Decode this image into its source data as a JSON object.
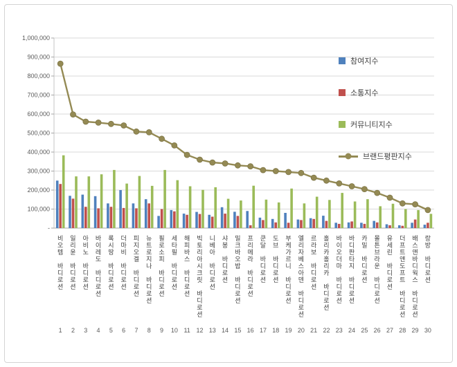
{
  "chart_data": {
    "type": "bar",
    "title": "",
    "categories": [
      "비오템 바디로션",
      "일리윤 바디로션",
      "아비노 바디로션",
      "바이레도 바디로션",
      "록시땅 바디로션",
      "더마비 바디로션",
      "피지오겔 바디로션",
      "뉴트로지나 바디로션",
      "필로소피 바디로션",
      "세타필 바디로션",
      "해피바스 바디로션",
      "빅토리아시크릿 바디로션",
      "니베아 바디로션",
      "샤봉 바디로션",
      "밀크바오밥 바디로션",
      "프리메라 바디로션",
      "쿤달 바디로션",
      "도브 바디로션",
      "부케가르니 바디로션",
      "엘리자베스아덴 바디로션",
      "르라보 바디로션",
      "홀리카홀리카 바디로션",
      "바이오더마 바디로션",
      "바디판타지 바디로션",
      "카밀 바디로션",
      "몰튼브라운 바디로션",
      "유세린 바디로션",
      "더프트앤도프트 바디로션",
      "배스앤바디웍스 바디로션",
      "랑방 바디로션"
    ],
    "ranks": [
      "1",
      "2",
      "3",
      "4",
      "5",
      "6",
      "7",
      "8",
      "9",
      "10",
      "11",
      "12",
      "13",
      "14",
      "15",
      "16",
      "17",
      "18",
      "19",
      "20",
      "21",
      "22",
      "23",
      "24",
      "25",
      "26",
      "27",
      "28",
      "29",
      "30"
    ],
    "series": [
      {
        "name": "참여지수",
        "kind": "bar",
        "color": "#4F81BD",
        "values": [
          250000,
          170000,
          176000,
          168000,
          130000,
          200000,
          130000,
          152000,
          64000,
          95000,
          76000,
          85000,
          70000,
          110000,
          86000,
          90000,
          55000,
          48000,
          80000,
          45000,
          52000,
          65000,
          28000,
          30000,
          28000,
          38000,
          20000,
          15000,
          28000,
          18000
        ]
      },
      {
        "name": "소통지수",
        "kind": "bar",
        "color": "#C0504D",
        "values": [
          232000,
          155000,
          112000,
          104000,
          112000,
          106000,
          104000,
          130000,
          100000,
          88000,
          70000,
          74000,
          60000,
          76000,
          64000,
          15000,
          42000,
          30000,
          28000,
          42000,
          48000,
          38000,
          22000,
          35000,
          22000,
          30000,
          15000,
          12000,
          45000,
          28000
        ]
      },
      {
        "name": "커뮤니티지수",
        "kind": "bar",
        "color": "#9BBB59",
        "values": [
          383000,
          272000,
          272000,
          283000,
          306000,
          234000,
          274000,
          222000,
          306000,
          252000,
          220000,
          201000,
          215000,
          154000,
          145000,
          223000,
          150000,
          135000,
          208000,
          130000,
          165000,
          148000,
          185000,
          140000,
          152000,
          115000,
          128000,
          100000,
          95000,
          75000
        ]
      },
      {
        "name": "브랜드평판지수",
        "kind": "line",
        "color": "#948A54",
        "values": [
          865000,
          598000,
          560000,
          555000,
          548000,
          540000,
          508000,
          504000,
          470000,
          435000,
          385000,
          360000,
          345000,
          340000,
          330000,
          325000,
          305000,
          300000,
          295000,
          290000,
          265000,
          250000,
          235000,
          220000,
          205000,
          185000,
          160000,
          130000,
          125000,
          95000
        ]
      }
    ],
    "ylim": [
      0,
      1000000
    ],
    "ytick_step": 100000,
    "y_tick_labels": [
      "-",
      "100,000",
      "200,000",
      "300,000",
      "400,000",
      "500,000",
      "600,000",
      "700,000",
      "800,000",
      "900,000",
      "1,000,000"
    ],
    "grid": true,
    "legend_position": "inside-top-right"
  },
  "legend": {
    "items": [
      {
        "label": "참여지수"
      },
      {
        "label": "소통지수"
      },
      {
        "label": "커뮤니티지수"
      },
      {
        "label": "브랜드평판지수"
      }
    ]
  }
}
